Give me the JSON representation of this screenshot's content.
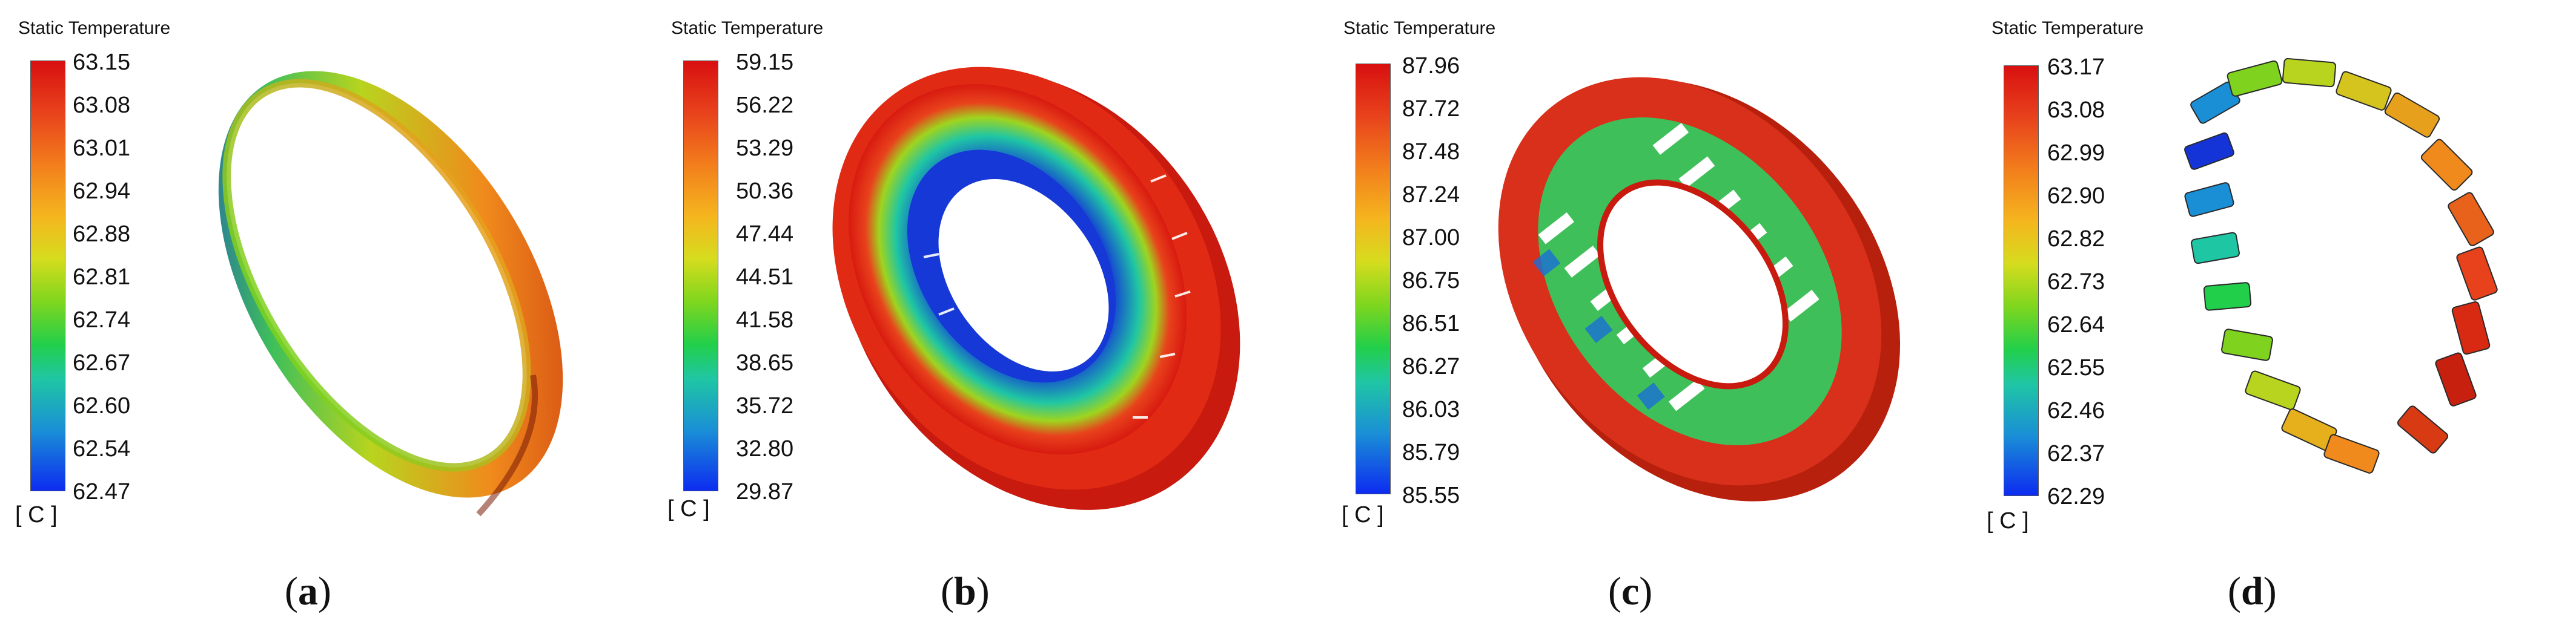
{
  "panels": [
    {
      "id": "a",
      "legend_title": "Static Temperature",
      "ticks": [
        "63.15",
        "63.08",
        "63.01",
        "62.94",
        "62.88",
        "62.81",
        "62.74",
        "62.67",
        "62.60",
        "62.54",
        "62.47"
      ],
      "unit": "[ C ]",
      "caption_open": "(",
      "caption_letter": "a",
      "caption_close": ")"
    },
    {
      "id": "b",
      "legend_title": "Static Temperature",
      "ticks": [
        "59.15",
        "56.22",
        "53.29",
        "50.36",
        "47.44",
        "44.51",
        "41.58",
        "38.65",
        "35.72",
        "32.80",
        "29.87"
      ],
      "unit": "[ C ]",
      "caption_open": "(",
      "caption_letter": "b",
      "caption_close": ")"
    },
    {
      "id": "c",
      "legend_title": "Static Temperature",
      "ticks": [
        "87.96",
        "87.72",
        "87.48",
        "87.24",
        "87.00",
        "86.75",
        "86.51",
        "86.27",
        "86.03",
        "85.79",
        "85.55"
      ],
      "unit": "[ C ]",
      "caption_open": "(",
      "caption_letter": "c",
      "caption_close": ")"
    },
    {
      "id": "d",
      "legend_title": "Static Temperature",
      "ticks": [
        "63.17",
        "63.08",
        "62.99",
        "62.90",
        "62.82",
        "62.73",
        "62.64",
        "62.55",
        "62.46",
        "62.37",
        "62.29"
      ],
      "unit": "[ C ]",
      "caption_open": "(",
      "caption_letter": "d",
      "caption_close": ")"
    }
  ],
  "colors": {
    "hot": "#d81a10",
    "warm": "#f08a1c",
    "mid": "#c8d81e",
    "cool": "#22cf4a",
    "cold": "#1434d8"
  }
}
